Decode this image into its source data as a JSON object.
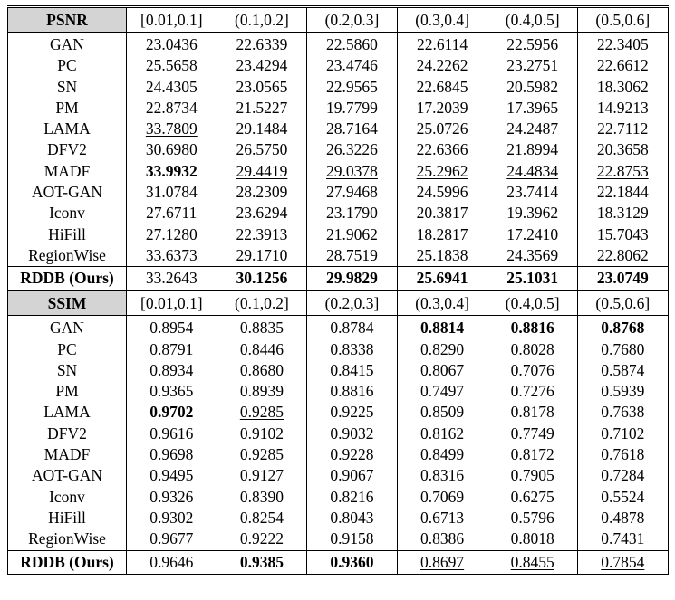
{
  "psnr": {
    "label": "PSNR",
    "columns": [
      "[0.01,0.1]",
      "(0.1,0.2]",
      "(0.2,0.3]",
      "(0.3,0.4]",
      "(0.4,0.5]",
      "(0.5,0.6]"
    ],
    "rows": [
      {
        "name": "GAN",
        "values": [
          "23.0436",
          "22.6339",
          "22.5860",
          "22.6114",
          "22.5956",
          "22.3405"
        ],
        "bold": [],
        "underline": []
      },
      {
        "name": "PC",
        "values": [
          "25.5658",
          "23.4294",
          "23.4746",
          "24.2262",
          "23.2751",
          "22.6612"
        ],
        "bold": [],
        "underline": []
      },
      {
        "name": "SN",
        "values": [
          "24.4305",
          "23.0565",
          "22.9565",
          "22.6845",
          "20.5982",
          "18.3062"
        ],
        "bold": [],
        "underline": []
      },
      {
        "name": "PM",
        "values": [
          "22.8734",
          "21.5227",
          "19.7799",
          "17.2039",
          "17.3965",
          "14.9213"
        ],
        "bold": [],
        "underline": []
      },
      {
        "name": "LAMA",
        "values": [
          "33.7809",
          "29.1484",
          "28.7164",
          "25.0726",
          "24.2487",
          "22.7112"
        ],
        "bold": [],
        "underline": [
          0
        ]
      },
      {
        "name": "DFV2",
        "values": [
          "30.6980",
          "26.5750",
          "26.3226",
          "22.6366",
          "21.8994",
          "20.3658"
        ],
        "bold": [],
        "underline": []
      },
      {
        "name": "MADF",
        "values": [
          "33.9932",
          "29.4419",
          "29.0378",
          "25.2962",
          "24.4834",
          "22.8753"
        ],
        "bold": [
          0
        ],
        "underline": [
          1,
          2,
          3,
          4,
          5
        ]
      },
      {
        "name": "AOT-GAN",
        "values": [
          "31.0784",
          "28.2309",
          "27.9468",
          "24.5996",
          "23.7414",
          "22.1844"
        ],
        "bold": [],
        "underline": []
      },
      {
        "name": "Iconv",
        "values": [
          "27.6711",
          "23.6294",
          "23.1790",
          "20.3817",
          "19.3962",
          "18.3129"
        ],
        "bold": [],
        "underline": []
      },
      {
        "name": "HiFill",
        "values": [
          "27.1280",
          "22.3913",
          "21.9062",
          "18.2817",
          "17.2410",
          "15.7043"
        ],
        "bold": [],
        "underline": []
      },
      {
        "name": "RegionWise",
        "values": [
          "33.6373",
          "29.1710",
          "28.7519",
          "25.1838",
          "24.3569",
          "22.8062"
        ],
        "bold": [],
        "underline": []
      }
    ],
    "ours": {
      "name": "RDDB (Ours)",
      "values": [
        "33.2643",
        "30.1256",
        "29.9829",
        "25.6941",
        "25.1031",
        "23.0749"
      ],
      "bold": [
        1,
        2,
        3,
        4,
        5
      ],
      "underline": []
    }
  },
  "ssim": {
    "label": "SSIM",
    "columns": [
      "[0.01,0.1]",
      "(0.1,0.2]",
      "(0.2,0.3]",
      "(0.3,0.4]",
      "(0.4,0.5]",
      "(0.5,0.6]"
    ],
    "rows": [
      {
        "name": "GAN",
        "values": [
          "0.8954",
          "0.8835",
          "0.8784",
          "0.8814",
          "0.8816",
          "0.8768"
        ],
        "bold": [
          3,
          4,
          5
        ],
        "underline": []
      },
      {
        "name": "PC",
        "values": [
          "0.8791",
          "0.8446",
          "0.8338",
          "0.8290",
          "0.8028",
          "0.7680"
        ],
        "bold": [],
        "underline": []
      },
      {
        "name": "SN",
        "values": [
          "0.8934",
          "0.8680",
          "0.8415",
          "0.8067",
          "0.7076",
          "0.5874"
        ],
        "bold": [],
        "underline": []
      },
      {
        "name": "PM",
        "values": [
          "0.9365",
          "0.8939",
          "0.8816",
          "0.7497",
          "0.7276",
          "0.5939"
        ],
        "bold": [],
        "underline": []
      },
      {
        "name": "LAMA",
        "values": [
          "0.9702",
          "0.9285",
          "0.9225",
          "0.8509",
          "0.8178",
          "0.7638"
        ],
        "bold": [
          0
        ],
        "underline": [
          1
        ]
      },
      {
        "name": "DFV2",
        "values": [
          "0.9616",
          "0.9102",
          "0.9032",
          "0.8162",
          "0.7749",
          "0.7102"
        ],
        "bold": [],
        "underline": []
      },
      {
        "name": "MADF",
        "values": [
          "0.9698",
          "0.9285",
          "0.9228",
          "0.8499",
          "0.8172",
          "0.7618"
        ],
        "bold": [],
        "underline": [
          0,
          1,
          2
        ]
      },
      {
        "name": "AOT-GAN",
        "values": [
          "0.9495",
          "0.9127",
          "0.9067",
          "0.8316",
          "0.7905",
          "0.7284"
        ],
        "bold": [],
        "underline": []
      },
      {
        "name": "Iconv",
        "values": [
          "0.9326",
          "0.8390",
          "0.8216",
          "0.7069",
          "0.6275",
          "0.5524"
        ],
        "bold": [],
        "underline": []
      },
      {
        "name": "HiFill",
        "values": [
          "0.9302",
          "0.8254",
          "0.8043",
          "0.6713",
          "0.5796",
          "0.4878"
        ],
        "bold": [],
        "underline": []
      },
      {
        "name": "RegionWise",
        "values": [
          "0.9677",
          "0.9222",
          "0.9158",
          "0.8386",
          "0.8018",
          "0.7431"
        ],
        "bold": [],
        "underline": []
      }
    ],
    "ours": {
      "name": "RDDB (Ours)",
      "values": [
        "0.9646",
        "0.9385",
        "0.9360",
        "0.8697",
        "0.8455",
        "0.7854"
      ],
      "bold": [
        1,
        2
      ],
      "underline": [
        3,
        4,
        5
      ]
    }
  }
}
